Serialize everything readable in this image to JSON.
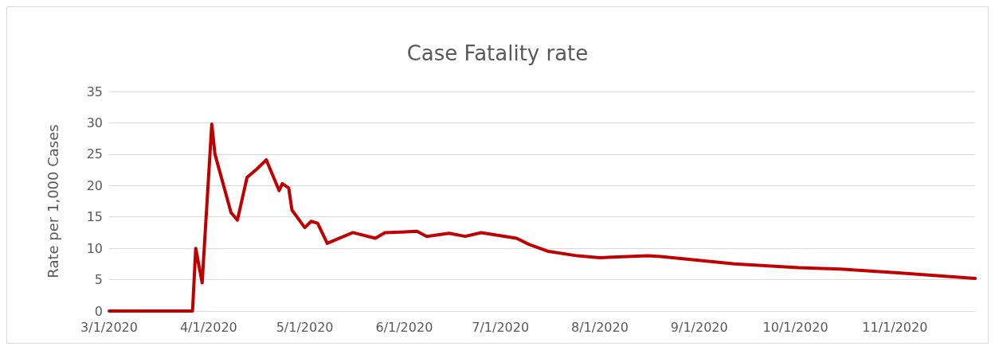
{
  "chart_data": {
    "type": "line",
    "title": "Case Fatality rate",
    "ylabel": "Rate per 1,000 Cases",
    "x": [
      "2020-03-01",
      "2020-03-27",
      "2020-03-28",
      "2020-03-30",
      "2020-04-02",
      "2020-04-03",
      "2020-04-08",
      "2020-04-10",
      "2020-04-13",
      "2020-04-16",
      "2020-04-19",
      "2020-04-23",
      "2020-04-24",
      "2020-04-26",
      "2020-04-27",
      "2020-05-01",
      "2020-05-03",
      "2020-05-05",
      "2020-05-08",
      "2020-05-16",
      "2020-05-23",
      "2020-05-26",
      "2020-06-05",
      "2020-06-08",
      "2020-06-15",
      "2020-06-20",
      "2020-06-25",
      "2020-07-06",
      "2020-07-10",
      "2020-07-16",
      "2020-07-25",
      "2020-08-01",
      "2020-08-16",
      "2020-08-20",
      "2020-09-12",
      "2020-10-02",
      "2020-10-15",
      "2020-11-02",
      "2020-11-26"
    ],
    "series": [
      {
        "color": "#c00000",
        "values": [
          0,
          0,
          10,
          4.5,
          29.8,
          25,
          15.7,
          14.5,
          21.3,
          22.6,
          24.1,
          19.2,
          20.3,
          19.6,
          16.1,
          13.3,
          14.3,
          14,
          10.8,
          12.5,
          11.6,
          12.5,
          12.7,
          11.9,
          12.4,
          11.9,
          12.5,
          11.6,
          10.6,
          9.5,
          8.8,
          8.5,
          8.8,
          8.7,
          7.5,
          6.9,
          6.7,
          6.1,
          5.2
        ]
      }
    ],
    "xlim": [
      "2020-03-01",
      "2020-11-26"
    ],
    "xticks": [
      {
        "value": "2020-03-01",
        "label": "3/1/2020"
      },
      {
        "value": "2020-04-01",
        "label": "4/1/2020"
      },
      {
        "value": "2020-05-01",
        "label": "5/1/2020"
      },
      {
        "value": "2020-06-01",
        "label": "6/1/2020"
      },
      {
        "value": "2020-07-01",
        "label": "7/1/2020"
      },
      {
        "value": "2020-08-01",
        "label": "8/1/2020"
      },
      {
        "value": "2020-09-01",
        "label": "9/1/2020"
      },
      {
        "value": "2020-10-01",
        "label": "10/1/2020"
      },
      {
        "value": "2020-11-01",
        "label": "11/1/2020"
      }
    ],
    "ylim": [
      0,
      35
    ],
    "yticks": [
      0,
      5,
      10,
      15,
      20,
      25,
      30,
      35
    ],
    "grid": "y",
    "marker": "none",
    "line_style": "solid"
  }
}
